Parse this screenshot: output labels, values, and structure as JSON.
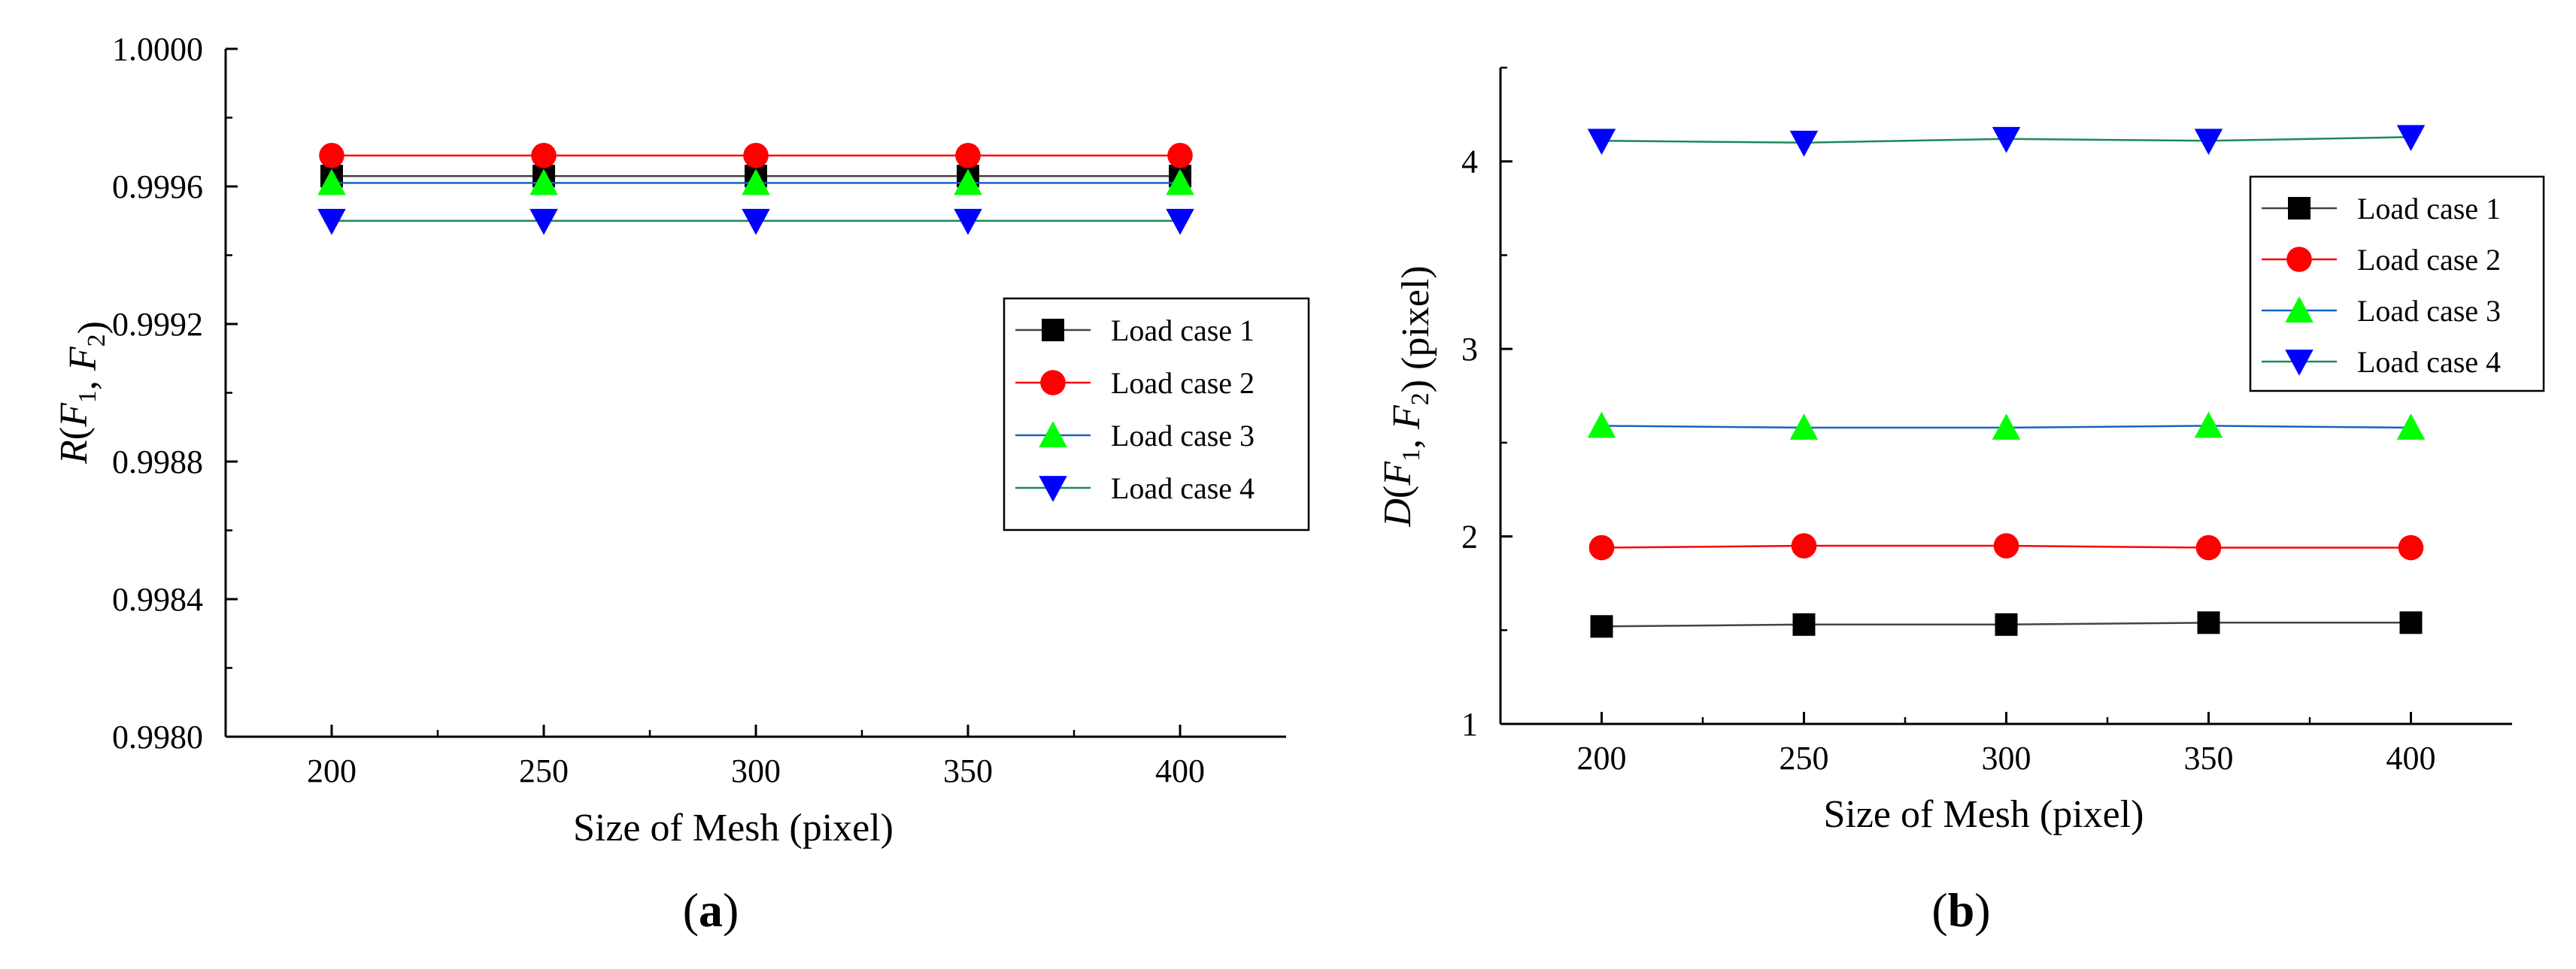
{
  "chart_data": [
    {
      "panel_label": "a",
      "type": "line",
      "xlabel": "Size of Mesh (pixel)",
      "ylabel": {
        "pre": "R(",
        "f1": "F",
        "sub1": "1",
        "mid": ", ",
        "f2": "F",
        "sub2": "2",
        "post": ")"
      },
      "x": [
        200,
        250,
        300,
        350,
        400
      ],
      "xlim": [
        175,
        425
      ],
      "ylim": [
        0.998,
        1.0
      ],
      "yticks": [
        0.998,
        0.9984,
        0.9988,
        0.9992,
        0.9996,
        1.0
      ],
      "ytick_labels": [
        "0.9980",
        "0.9984",
        "0.9988",
        "0.9992",
        "0.9996",
        "1.0000"
      ],
      "xtick_labels": [
        "200",
        "250",
        "300",
        "350",
        "400"
      ],
      "legend_position": "center-right",
      "series": [
        {
          "name": "Load case 1",
          "marker": "square",
          "color": "#000000",
          "line_color": "#444444",
          "values": [
            0.99963,
            0.99963,
            0.99963,
            0.99963,
            0.99963
          ]
        },
        {
          "name": "Load case 2",
          "marker": "circle",
          "color": "#ff0000",
          "line_color": "#ff0000",
          "values": [
            0.99969,
            0.99969,
            0.99969,
            0.99969,
            0.99969
          ]
        },
        {
          "name": "Load case 3",
          "marker": "triangle-up",
          "color": "#00ff00",
          "line_color": "#1565c0",
          "values": [
            0.99961,
            0.99961,
            0.99961,
            0.99961,
            0.99961
          ]
        },
        {
          "name": "Load case 4",
          "marker": "triangle-down",
          "color": "#0000ff",
          "line_color": "#1a8a5a",
          "values": [
            0.9995,
            0.9995,
            0.9995,
            0.9995,
            0.9995
          ]
        }
      ]
    },
    {
      "panel_label": "b",
      "type": "line",
      "xlabel": "Size of Mesh (pixel)",
      "ylabel": {
        "pre": "D(",
        "f1": "F",
        "sub1": "1",
        "mid": ", ",
        "f2": "F",
        "sub2": "2",
        "post": ") (pixel)"
      },
      "x": [
        200,
        250,
        300,
        350,
        400
      ],
      "xlim": [
        175,
        425
      ],
      "ylim": [
        1,
        4.5
      ],
      "yticks": [
        1,
        2,
        3,
        4
      ],
      "ytick_labels": [
        "1",
        "2",
        "3",
        "4"
      ],
      "xtick_labels": [
        "200",
        "250",
        "300",
        "350",
        "400"
      ],
      "legend_position": "top-right",
      "series": [
        {
          "name": "Load case 1",
          "marker": "square",
          "color": "#000000",
          "line_color": "#444444",
          "values": [
            1.52,
            1.53,
            1.53,
            1.54,
            1.54
          ]
        },
        {
          "name": "Load case 2",
          "marker": "circle",
          "color": "#ff0000",
          "line_color": "#ff0000",
          "values": [
            1.94,
            1.95,
            1.95,
            1.94,
            1.94
          ]
        },
        {
          "name": "Load case 3",
          "marker": "triangle-up",
          "color": "#00ff00",
          "line_color": "#1565c0",
          "values": [
            2.59,
            2.58,
            2.58,
            2.59,
            2.58
          ]
        },
        {
          "name": "Load case 4",
          "marker": "triangle-down",
          "color": "#0000ff",
          "line_color": "#1a8a5a",
          "values": [
            4.11,
            4.1,
            4.12,
            4.11,
            4.13
          ]
        }
      ]
    }
  ]
}
